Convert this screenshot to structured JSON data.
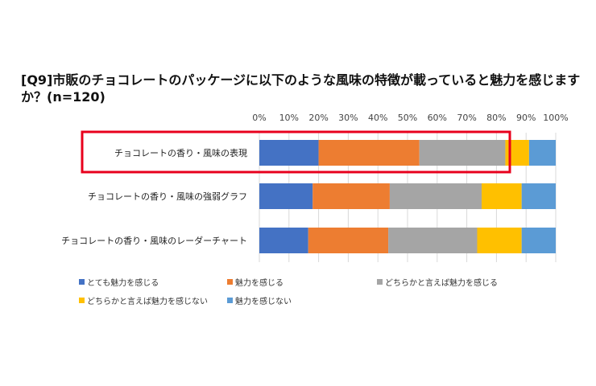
{
  "chart_data": {
    "type": "bar",
    "orientation": "horizontal",
    "stacked": true,
    "title": "[Q9]市販のチョコレートのパッケージに以下のような風味の特徴が載っていると魅力を感じますか？(n=120)",
    "xlim": [
      0,
      100
    ],
    "x_ticks": [
      0,
      10,
      20,
      30,
      40,
      50,
      60,
      70,
      80,
      90,
      100
    ],
    "x_tick_labels": [
      "0%",
      "10%",
      "20%",
      "30%",
      "40%",
      "50%",
      "60%",
      "70%",
      "80%",
      "90%",
      "100%"
    ],
    "categories": [
      "チョコレートの香り・風味の表現",
      "チョコレートの香り・風味の強弱グラフ",
      "チョコレートの香り・風味のレーダーチャート"
    ],
    "series": [
      {
        "name": "とても魅力を感じる",
        "color": "#4472C4",
        "values": [
          20,
          18,
          16.5
        ]
      },
      {
        "name": "魅力を感じる",
        "color": "#ED7D31",
        "values": [
          34,
          26,
          27
        ]
      },
      {
        "name": "どちらかと言えば魅力を感じる",
        "color": "#A5A5A5",
        "values": [
          29,
          31,
          30
        ]
      },
      {
        "name": "どちらかと言えば魅力を感じない",
        "color": "#FFC000",
        "values": [
          8,
          13.5,
          15
        ]
      },
      {
        "name": "魅力を感じない",
        "color": "#5B9BD5",
        "values": [
          9,
          11.5,
          11.5
        ]
      }
    ],
    "legend_position": "bottom",
    "highlight_category": 0,
    "highlight_color": "#E8001C"
  }
}
